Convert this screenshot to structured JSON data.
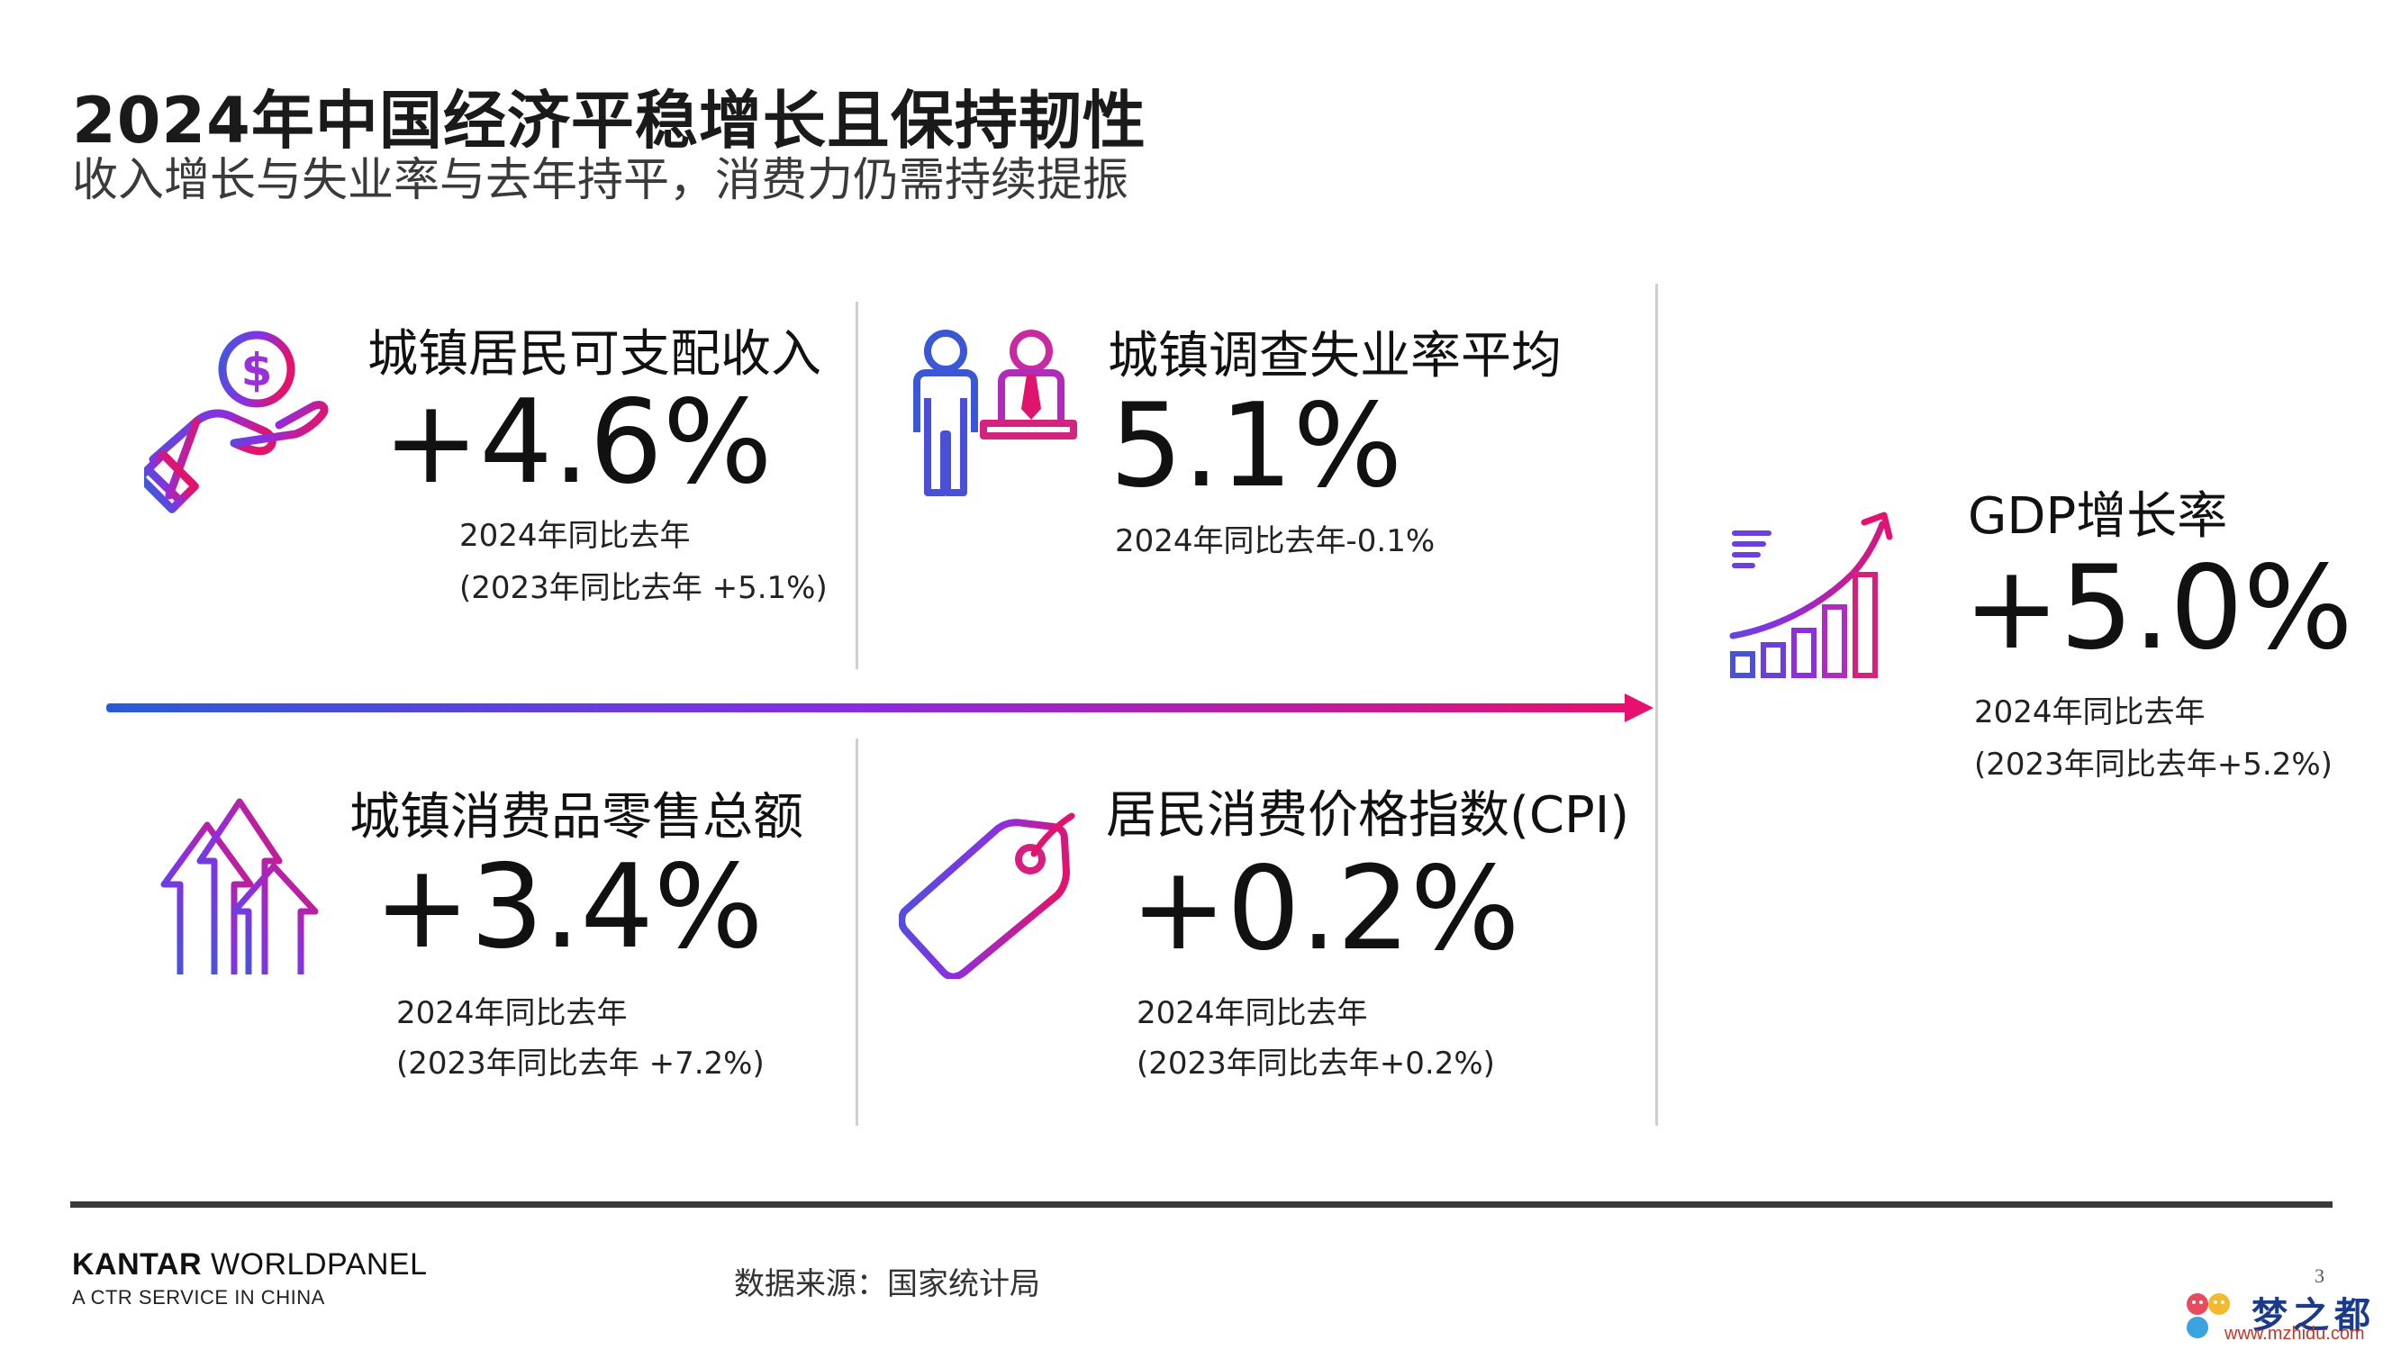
{
  "header": {
    "title": "2024年中国经济平稳增长且保持韧性",
    "subtitle": "收入增长与失业率与去年持平，消费力仍需持续提振"
  },
  "metrics": {
    "income": {
      "icon": "hand-coin-icon",
      "label": "城镇居民可支配收入",
      "value": "+4.6%",
      "note1": "2024年同比去年",
      "note2": "(2023年同比去年 +5.1%)"
    },
    "unemployment": {
      "icon": "workers-icon",
      "label": "城镇调查失业率平均",
      "value": "5.1%",
      "note1": "2024年同比去年-0.1%"
    },
    "retail": {
      "icon": "rising-arrows-icon",
      "label": "城镇消费品零售总额",
      "value": "+3.4%",
      "note1": "2024年同比去年",
      "note2": "(2023年同比去年 +7.2%)"
    },
    "cpi": {
      "icon": "price-tag-icon",
      "label": "居民消费价格指数(CPI)",
      "value": "+0.2%",
      "note1": "2024年同比去年",
      "note2": "(2023年同比去年+0.2%)"
    },
    "gdp": {
      "icon": "growth-chart-icon",
      "label": "GDP增长率",
      "value": "+5.0%",
      "note1": "2024年同比去年",
      "note2": "(2023年同比去年+5.2%)"
    }
  },
  "colors": {
    "gradient_start": "#2a5bd7",
    "gradient_mid": "#8a2be2",
    "gradient_end": "#e8106e"
  },
  "footer": {
    "brand_bold": "KANTAR",
    "brand_rest": " WORLDPANEL",
    "tagline": "A CTR SERVICE IN CHINA",
    "source": "数据来源：国家统计局",
    "page_number": "3"
  },
  "watermark": {
    "text": "梦之都",
    "url": "www.mzhidu.com"
  }
}
